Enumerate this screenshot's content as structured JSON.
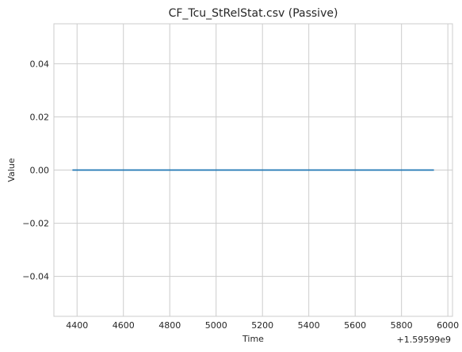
{
  "chart_data": {
    "type": "line",
    "title": "CF_Tcu_StRelStat.csv (Passive)",
    "xlabel": "Time",
    "ylabel": "Value",
    "x_offset_label": "+1.59599e9",
    "xlim": [
      4300,
      6020
    ],
    "ylim": [
      -0.055,
      0.055
    ],
    "x_ticks": [
      4400,
      4600,
      4800,
      5000,
      5200,
      5400,
      5600,
      5800,
      6000
    ],
    "x_tick_labels": [
      "4400",
      "4600",
      "4800",
      "5000",
      "5200",
      "5400",
      "5600",
      "5800",
      "6000"
    ],
    "y_ticks": [
      -0.04,
      -0.02,
      0.0,
      0.02,
      0.04
    ],
    "y_tick_labels": [
      "−0.04",
      "−0.02",
      "0.00",
      "0.02",
      "0.04"
    ],
    "grid": true,
    "series": [
      {
        "color": "#1f77b4",
        "x": [
          4380,
          5940
        ],
        "y": [
          0,
          0
        ]
      }
    ]
  }
}
